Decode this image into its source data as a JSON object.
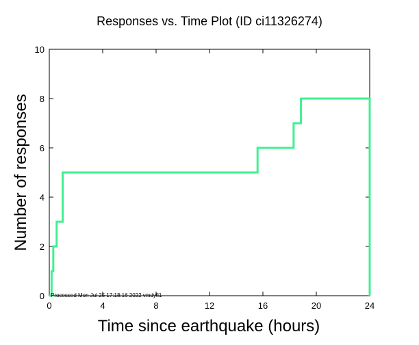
{
  "chart_data": {
    "type": "line",
    "step": true,
    "title": "Responses vs. Time Plot (ID ci11326274)",
    "xlabel": "Time since earthquake (hours)",
    "ylabel": "Number of responses",
    "xlim": [
      0,
      24
    ],
    "ylim": [
      0,
      10
    ],
    "xticks": [
      0,
      4,
      8,
      12,
      16,
      20,
      24
    ],
    "yticks": [
      0,
      2,
      4,
      6,
      8,
      10
    ],
    "grid": false,
    "line_color": "#40f090",
    "series": [
      {
        "x": [
          0,
          0.17,
          0.3,
          0.55,
          1.0,
          15.6,
          18.3,
          18.85,
          24.0,
          24.0
        ],
        "y": [
          0,
          1,
          2,
          3,
          5,
          6,
          7,
          8,
          8,
          0
        ]
      }
    ],
    "annotation": "Processed Mon Jul 25 17:18:16 2022 vmdyfi1"
  }
}
